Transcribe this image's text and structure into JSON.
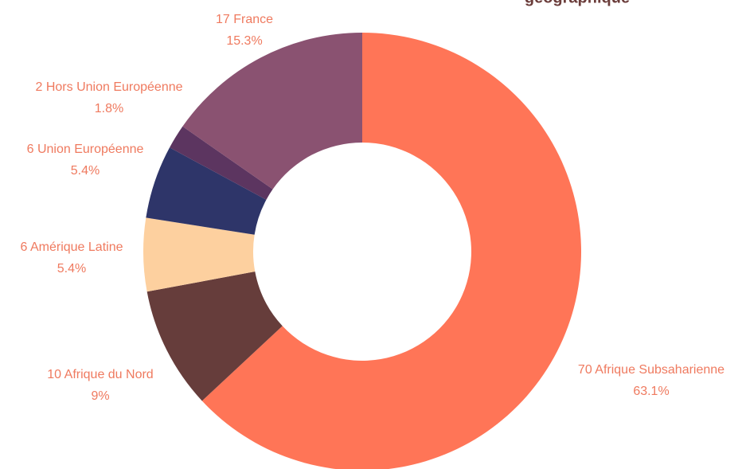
{
  "chart_data": {
    "type": "donut",
    "title": "géographique",
    "categories": [
      "Afrique Subsaharienne",
      "Afrique du Nord",
      "Amérique Latine",
      "Union Européenne",
      "Hors Union Européenne",
      "France"
    ],
    "values": [
      70,
      10,
      6,
      6,
      2,
      17
    ],
    "percentages": [
      63.1,
      9,
      5.4,
      5.4,
      1.8,
      15.3
    ],
    "percentage_labels": [
      "63.1%",
      "9%",
      "5.4%",
      "5.4%",
      "1.8%",
      "15.3%"
    ],
    "colors": [
      "#ff7557",
      "#663d3b",
      "#fdd09f",
      "#2e3569",
      "#5c3560",
      "#8a5271"
    ]
  }
}
